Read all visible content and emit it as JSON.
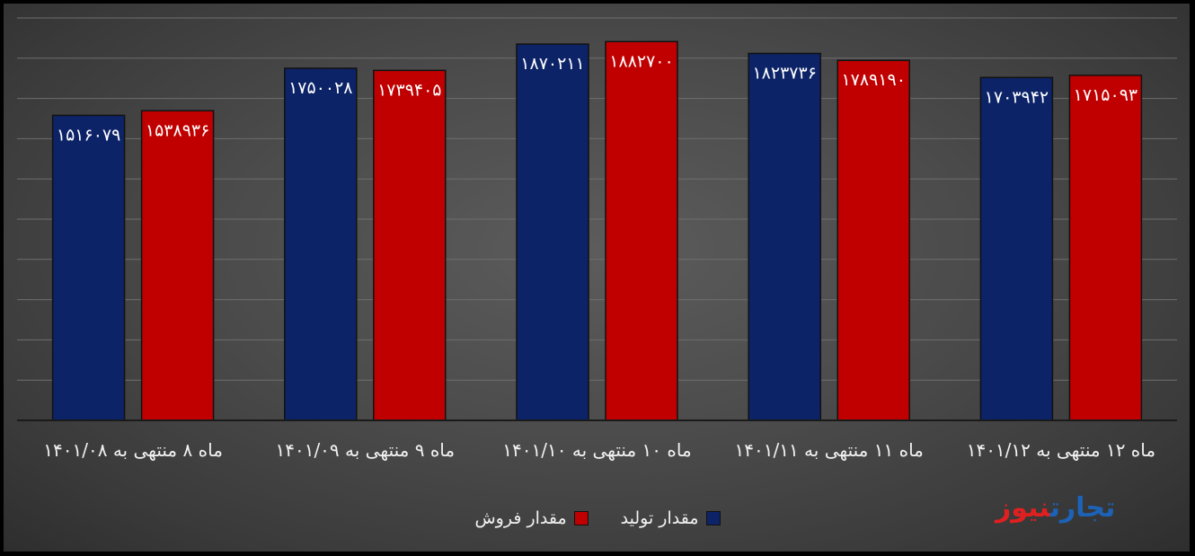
{
  "chart_data": {
    "type": "bar",
    "title": "",
    "xlabel": "",
    "ylabel": "",
    "ylim": [
      0,
      2000000
    ],
    "grid": true,
    "legend_position": "bottom",
    "categories": [
      "ماه ۸ منتهی به ۱۴۰۱/۰۸",
      "ماه ۹ منتهی به ۱۴۰۱/۰۹",
      "ماه ۱۰ منتهی به ۱۴۰۱/۱۰",
      "ماه ۱۱ منتهی به ۱۴۰۱/۱۱",
      "ماه ۱۲ منتهی به ۱۴۰۱/۱۲"
    ],
    "series": [
      {
        "name": "مقدار تولید",
        "color": "#0c2367",
        "values": [
          1516079,
          1750028,
          1870211,
          1823736,
          1703942
        ],
        "labels": [
          "۱۵۱۶۰۷۹",
          "۱۷۵۰۰۲۸",
          "۱۸۷۰۲۱۱",
          "۱۸۲۳۷۳۶",
          "۱۷۰۳۹۴۲"
        ]
      },
      {
        "name": "مقدار فروش",
        "color": "#c00000",
        "values": [
          1538936,
          1739405,
          1882700,
          1789190,
          1715093
        ],
        "labels": [
          "۱۵۳۸۹۳۶",
          "۱۷۳۹۴۰۵",
          "۱۸۸۲۷۰۰",
          "۱۷۸۹۱۹۰",
          "۱۷۱۵۰۹۳"
        ]
      }
    ]
  },
  "logo": {
    "part1": "تجارت",
    "part2": "نیوز"
  }
}
